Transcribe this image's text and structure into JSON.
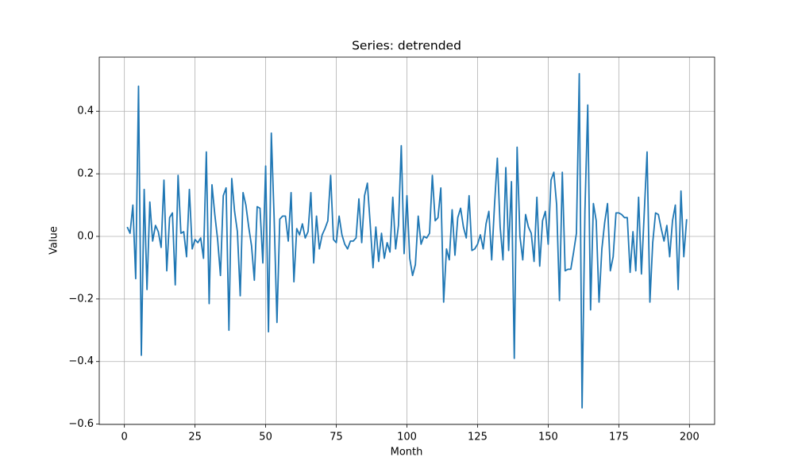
{
  "chart_data": {
    "type": "line",
    "title": "Series: detrended",
    "xlabel": "Month",
    "ylabel": "Value",
    "x": [
      1,
      2,
      3,
      4,
      5,
      6,
      7,
      8,
      9,
      10,
      11,
      12,
      13,
      14,
      15,
      16,
      17,
      18,
      19,
      20,
      21,
      22,
      23,
      24,
      25,
      26,
      27,
      28,
      29,
      30,
      31,
      32,
      33,
      34,
      35,
      36,
      37,
      38,
      39,
      40,
      41,
      42,
      43,
      44,
      45,
      46,
      47,
      48,
      49,
      50,
      51,
      52,
      53,
      54,
      55,
      56,
      57,
      58,
      59,
      60,
      61,
      62,
      63,
      64,
      65,
      66,
      67,
      68,
      69,
      70,
      71,
      72,
      73,
      74,
      75,
      76,
      77,
      78,
      79,
      80,
      81,
      82,
      83,
      84,
      85,
      86,
      87,
      88,
      89,
      90,
      91,
      92,
      93,
      94,
      95,
      96,
      97,
      98,
      99,
      100,
      101,
      102,
      103,
      104,
      105,
      106,
      107,
      108,
      109,
      110,
      111,
      112,
      113,
      114,
      115,
      116,
      117,
      118,
      119,
      120,
      121,
      122,
      123,
      124,
      125,
      126,
      127,
      128,
      129,
      130,
      131,
      132,
      133,
      134,
      135,
      136,
      137,
      138,
      139,
      140,
      141,
      142,
      143,
      144,
      145,
      146,
      147,
      148,
      149,
      150,
      151,
      152,
      153,
      154,
      155,
      156,
      157,
      158,
      159,
      160,
      161,
      162,
      163,
      164,
      165,
      166,
      167,
      168,
      169,
      170,
      171,
      172,
      173,
      174,
      175,
      176,
      177,
      178,
      179,
      180,
      181,
      182,
      183,
      184,
      185,
      186,
      187,
      188,
      189,
      190,
      191,
      192,
      193,
      194,
      195,
      196,
      197,
      198,
      199
    ],
    "series": [
      {
        "name": "detrended",
        "color": "#1f77b4",
        "values": [
          0.03,
          0.01,
          0.1,
          -0.135,
          0.48,
          -0.38,
          0.15,
          -0.17,
          0.11,
          -0.015,
          0.035,
          0.015,
          -0.035,
          0.18,
          -0.11,
          0.06,
          0.075,
          -0.155,
          0.195,
          0.01,
          0.015,
          -0.065,
          0.15,
          -0.04,
          -0.01,
          -0.02,
          -0.005,
          -0.07,
          0.27,
          -0.215,
          0.165,
          0.07,
          -0.01,
          -0.125,
          0.13,
          0.155,
          -0.3,
          0.185,
          0.08,
          0.015,
          -0.19,
          0.14,
          0.1,
          0.03,
          -0.03,
          -0.14,
          0.095,
          0.09,
          -0.085,
          0.225,
          -0.305,
          0.33,
          0.06,
          -0.275,
          0.055,
          0.065,
          0.065,
          -0.015,
          0.14,
          -0.145,
          0.025,
          0.005,
          0.04,
          -0.005,
          0.015,
          0.14,
          -0.085,
          0.065,
          -0.04,
          0.005,
          0.025,
          0.05,
          0.195,
          -0.01,
          -0.02,
          0.065,
          0.005,
          -0.025,
          -0.04,
          -0.015,
          -0.015,
          -0.005,
          0.12,
          -0.02,
          0.13,
          0.17,
          0.04,
          -0.1,
          0.03,
          -0.08,
          0.01,
          -0.07,
          -0.02,
          -0.05,
          0.125,
          -0.04,
          0.035,
          0.29,
          -0.055,
          0.13,
          -0.07,
          -0.125,
          -0.09,
          0.065,
          -0.025,
          0.0,
          -0.005,
          0.01,
          0.195,
          0.05,
          0.06,
          0.155,
          -0.21,
          -0.04,
          -0.075,
          0.085,
          -0.06,
          0.06,
          0.09,
          0.03,
          -0.005,
          0.13,
          -0.045,
          -0.04,
          -0.025,
          0.005,
          -0.04,
          0.04,
          0.08,
          -0.075,
          0.1,
          0.25,
          0.03,
          -0.075,
          0.22,
          -0.045,
          0.175,
          -0.39,
          0.285,
          0.0,
          -0.075,
          0.07,
          0.03,
          0.01,
          -0.08,
          0.125,
          -0.095,
          0.05,
          0.08,
          -0.025,
          0.18,
          0.205,
          0.1,
          -0.205,
          0.205,
          -0.11,
          -0.105,
          -0.105,
          -0.05,
          0.01,
          0.52,
          -0.548,
          0.08,
          0.42,
          -0.235,
          0.105,
          0.05,
          -0.21,
          -0.04,
          0.045,
          0.105,
          -0.11,
          -0.065,
          0.075,
          0.075,
          0.07,
          0.06,
          0.06,
          -0.115,
          0.015,
          -0.11,
          0.125,
          -0.12,
          0.075,
          0.27,
          -0.21,
          -0.02,
          0.075,
          0.07,
          0.025,
          -0.015,
          0.035,
          -0.065,
          0.05,
          0.1,
          -0.17,
          0.145,
          -0.065,
          0.055
        ]
      }
    ],
    "xlim": [
      -8.9,
      208.9
    ],
    "ylim": [
      -0.601,
      0.573
    ],
    "xticks": [
      0,
      25,
      50,
      75,
      100,
      125,
      150,
      175,
      200
    ],
    "yticks": [
      {
        "value": -0.6,
        "label": "−0.6"
      },
      {
        "value": -0.4,
        "label": "−0.4"
      },
      {
        "value": -0.2,
        "label": "−0.2"
      },
      {
        "value": 0,
        "label": "0.0"
      },
      0.2,
      0.4
    ],
    "grid": true
  }
}
